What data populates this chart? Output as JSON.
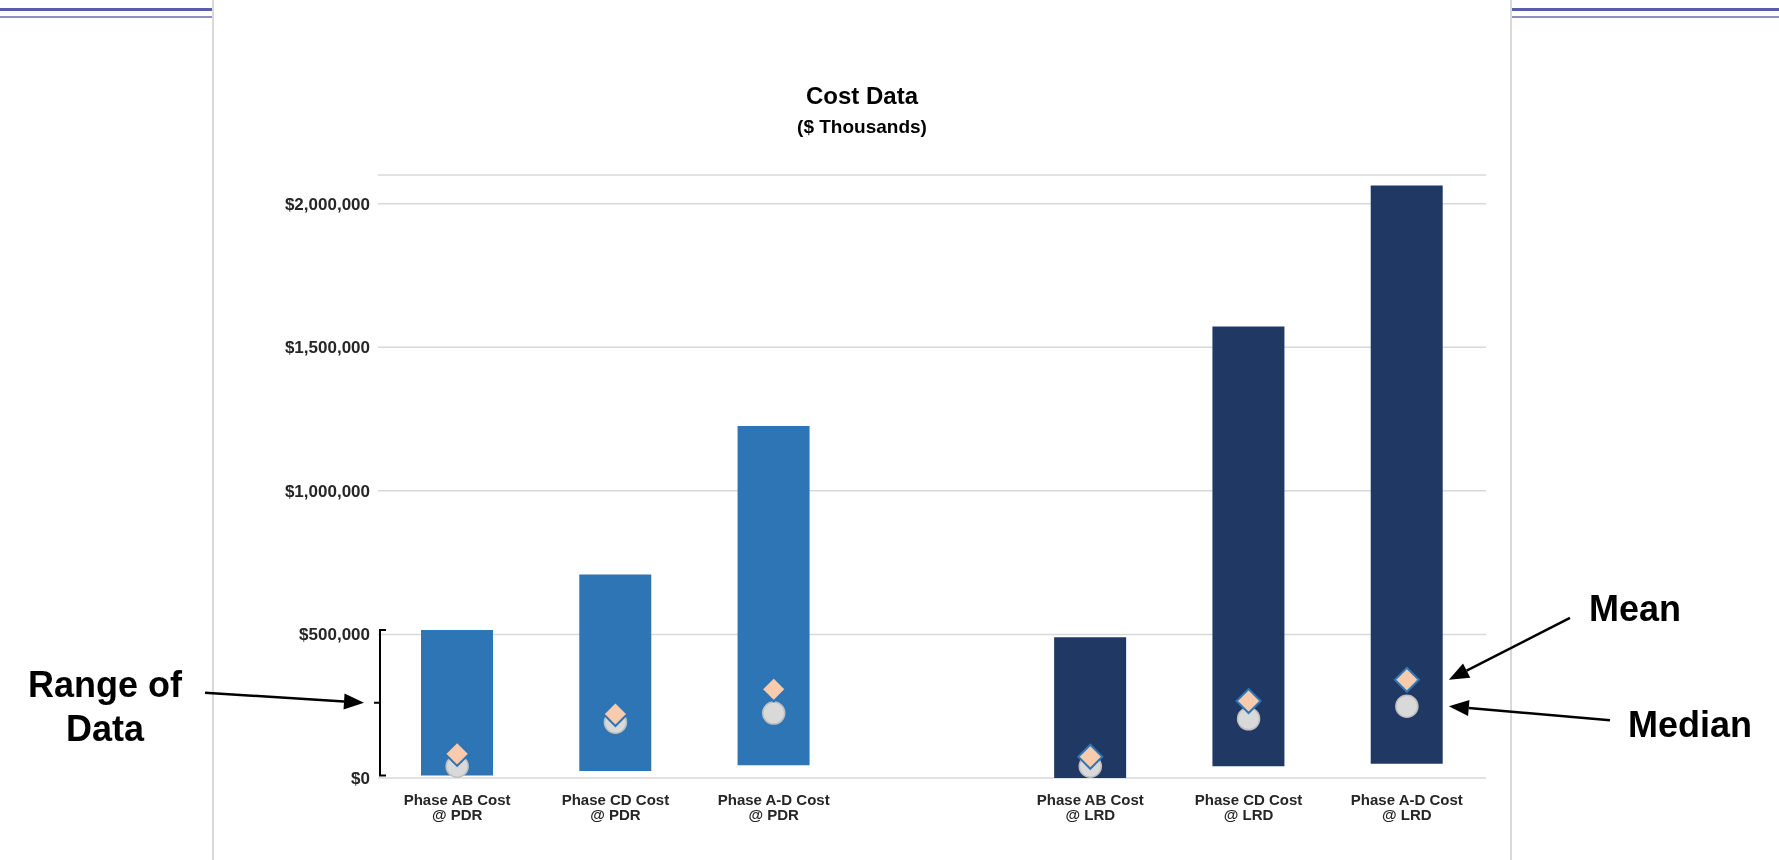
{
  "chart_data": {
    "type": "bar",
    "title": "Cost Data",
    "subtitle": "($ Thousands)",
    "categories": [
      "Phase AB Cost @ PDR",
      "Phase CD Cost @ PDR",
      "Phase A-D Cost @ PDR",
      null,
      "Phase AB Cost @ LRD",
      "Phase CD Cost @ LRD",
      "Phase A-D Cost @ LRD"
    ],
    "series": [
      {
        "base": [
          9000,
          24000,
          44000,
          null,
          0,
          41000,
          50000
        ],
        "values": [
          506000,
          685000,
          1182000,
          null,
          490000,
          1531000,
          2013000
        ],
        "colors": [
          "#2e75b6",
          "#2e75b6",
          "#2e75b6",
          null,
          "#203864",
          "#203864",
          "#203864"
        ]
      },
      {
        "type": "scatter",
        "marker": "circle",
        "color": "#d9d9d9",
        "x": [
          "Phase AB Cost @ PDR",
          "Phase CD Cost @ PDR",
          "Phase A-D Cost @ PDR",
          "Phase AB Cost @ LRD",
          "Phase CD Cost @ LRD",
          "Phase A-D Cost @ LRD"
        ],
        "values": [
          41000,
          194000,
          226000,
          41000,
          206000,
          250000
        ]
      },
      {
        "type": "scatter",
        "marker": "diamond",
        "color": "#f8cbad",
        "x": [
          "Phase AB Cost @ PDR",
          "Phase CD Cost @ PDR",
          "Phase A-D Cost @ PDR",
          "Phase AB Cost @ LRD",
          "Phase CD Cost @ LRD",
          "Phase A-D Cost @ LRD"
        ],
        "values": [
          84000,
          223000,
          309000,
          74000,
          268000,
          342000
        ]
      }
    ],
    "ylim": [
      0,
      2100000
    ],
    "yticks": [
      {
        "value": 0,
        "label": "$0"
      },
      {
        "value": 500000,
        "label": "$500,000"
      },
      {
        "value": 1000000,
        "label": "$1,000,000"
      },
      {
        "value": 1500000,
        "label": "$1,500,000"
      },
      {
        "value": 2000000,
        "label": "$2,000,000"
      }
    ],
    "grid": "y",
    "legend": false,
    "annotations": [
      "Mean",
      "Median",
      "Range of Data"
    ]
  }
}
